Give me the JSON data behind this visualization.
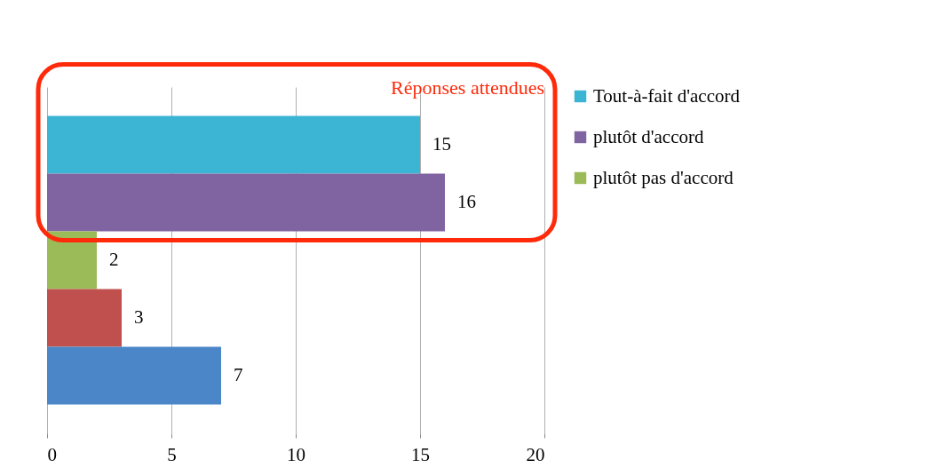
{
  "chart_data": {
    "type": "bar",
    "orientation": "horizontal",
    "categories": [
      null,
      null,
      null,
      null,
      null
    ],
    "series": [
      {
        "name": "Tout-à-fait d'accord",
        "color": "#3bb5d3",
        "values": [
          15,
          null,
          null,
          null,
          null
        ]
      },
      {
        "name": "plutôt d'accord",
        "color": "#8064a2",
        "values": [
          null,
          16,
          null,
          null,
          null
        ]
      },
      {
        "name": "plutôt pas d'accord",
        "color": "#9bbb59",
        "values": [
          null,
          null,
          2,
          null,
          null
        ]
      },
      {
        "color": "#c0504d",
        "values": [
          null,
          null,
          null,
          3,
          null
        ]
      },
      {
        "color": "#4a86c8",
        "values": [
          null,
          null,
          null,
          null,
          7
        ]
      }
    ],
    "xlim": [
      0,
      20
    ],
    "xticks": [
      0,
      5,
      10,
      15,
      20
    ],
    "grid": "x",
    "legend": "right",
    "tick_labels": "x",
    "data_labels": true,
    "annotations": [
      "Réponses attendues"
    ]
  }
}
